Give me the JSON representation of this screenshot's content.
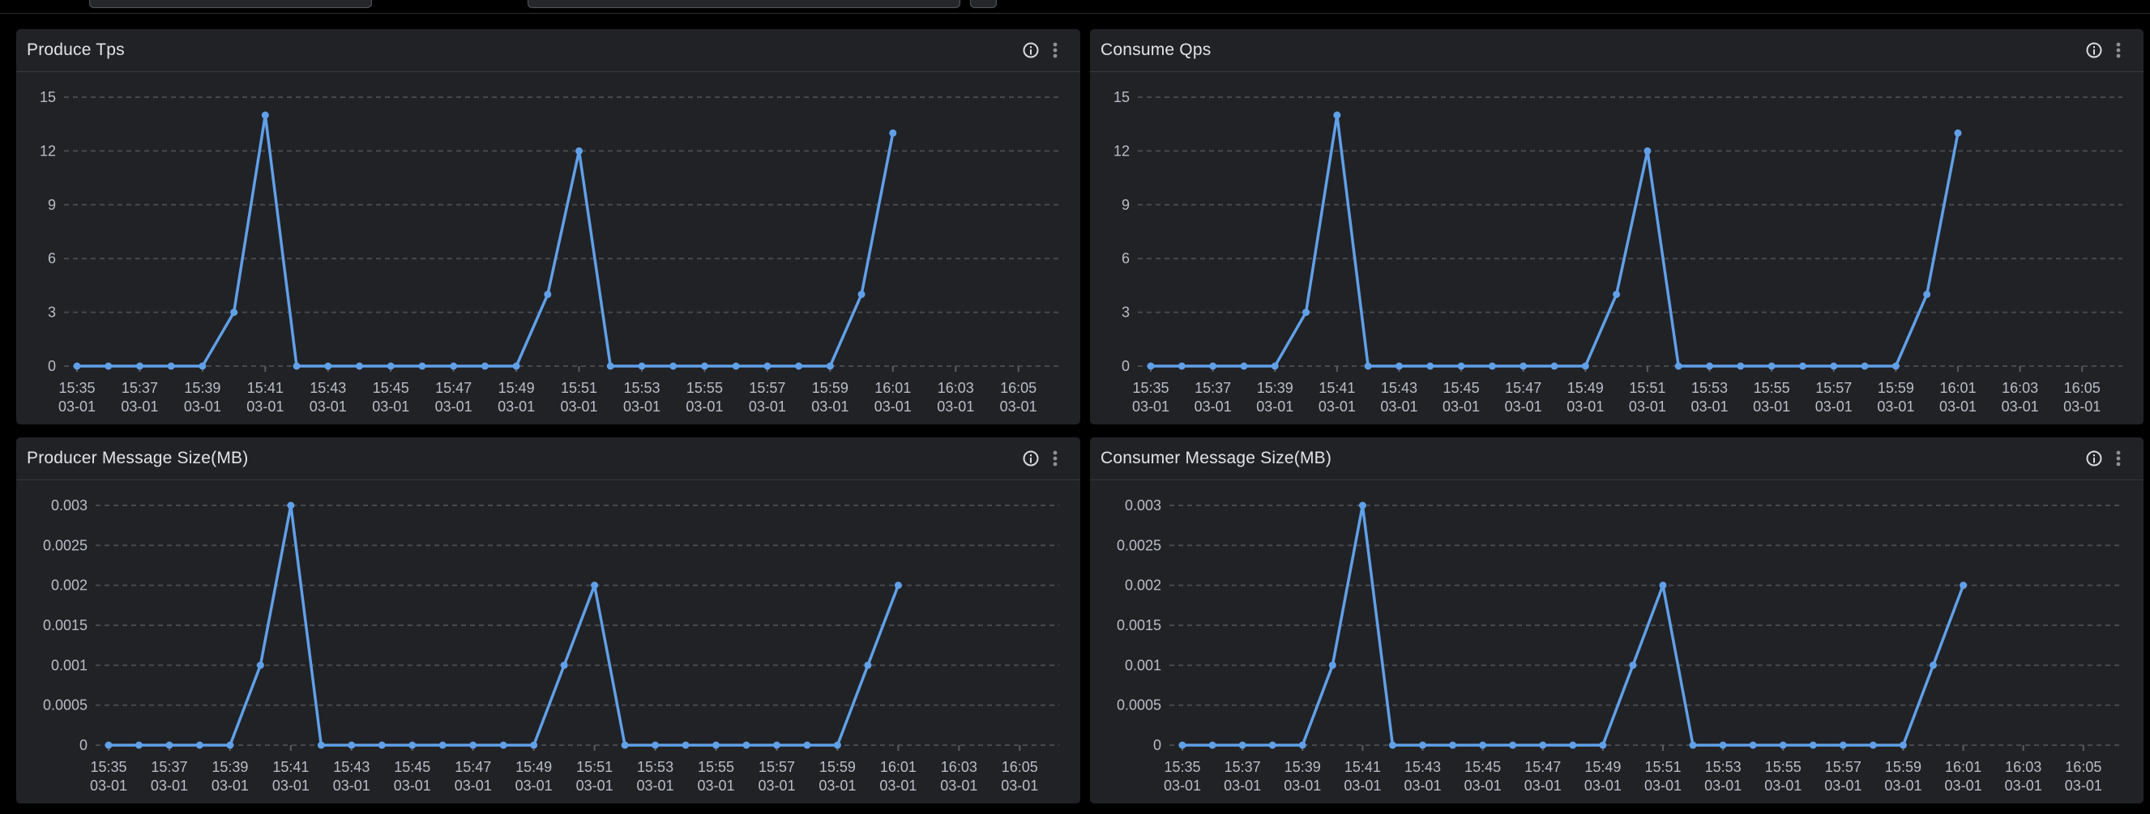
{
  "toolbar": {
    "input_1_value": "",
    "input_2_value": "",
    "button_stub_label": ""
  },
  "icons": {
    "panel_info": "info-icon",
    "panel_menu": "kebab-menu-icon"
  },
  "colors": {
    "page_background": "#000000",
    "panel_background": "#212226",
    "line": "#60A0E8",
    "grid": "#47494e",
    "axis_text": "#b9bdc6",
    "title_text": "#e2e3e6"
  },
  "chart_data": [
    {
      "type": "line",
      "title": "Produce Tps",
      "x": [
        "15:35",
        "15:36",
        "15:37",
        "15:38",
        "15:39",
        "15:40",
        "15:41",
        "15:42",
        "15:43",
        "15:44",
        "15:45",
        "15:46",
        "15:47",
        "15:48",
        "15:49",
        "15:50",
        "15:51",
        "15:52",
        "15:53",
        "15:54",
        "15:55",
        "15:56",
        "15:57",
        "15:58",
        "15:59",
        "16:00",
        "16:01"
      ],
      "values": [
        0,
        0,
        0,
        0,
        0,
        3,
        14,
        0,
        0,
        0,
        0,
        0,
        0,
        0,
        0,
        4,
        12,
        0,
        0,
        0,
        0,
        0,
        0,
        0,
        0,
        4,
        13
      ],
      "y_ticks": [
        0,
        3,
        6,
        9,
        12,
        15
      ],
      "ylim": [
        0,
        15
      ],
      "x_ticks": [
        "15:35",
        "15:37",
        "15:39",
        "15:41",
        "15:43",
        "15:45",
        "15:47",
        "15:49",
        "15:51",
        "15:53",
        "15:55",
        "15:57",
        "15:59",
        "16:01",
        "16:03",
        "16:05"
      ],
      "tick_date": "03-01",
      "xlabel": "",
      "ylabel": "",
      "legend": "none",
      "grid": "dashed horizontal",
      "line_color": "#60A0E8"
    },
    {
      "type": "line",
      "title": "Consume Qps",
      "x": [
        "15:35",
        "15:36",
        "15:37",
        "15:38",
        "15:39",
        "15:40",
        "15:41",
        "15:42",
        "15:43",
        "15:44",
        "15:45",
        "15:46",
        "15:47",
        "15:48",
        "15:49",
        "15:50",
        "15:51",
        "15:52",
        "15:53",
        "15:54",
        "15:55",
        "15:56",
        "15:57",
        "15:58",
        "15:59",
        "16:00",
        "16:01"
      ],
      "values": [
        0,
        0,
        0,
        0,
        0,
        3,
        14,
        0,
        0,
        0,
        0,
        0,
        0,
        0,
        0,
        4,
        12,
        0,
        0,
        0,
        0,
        0,
        0,
        0,
        0,
        4,
        13
      ],
      "y_ticks": [
        0,
        3,
        6,
        9,
        12,
        15
      ],
      "ylim": [
        0,
        15
      ],
      "x_ticks": [
        "15:35",
        "15:37",
        "15:39",
        "15:41",
        "15:43",
        "15:45",
        "15:47",
        "15:49",
        "15:51",
        "15:53",
        "15:55",
        "15:57",
        "15:59",
        "16:01",
        "16:03",
        "16:05"
      ],
      "tick_date": "03-01",
      "xlabel": "",
      "ylabel": "",
      "legend": "none",
      "grid": "dashed horizontal",
      "line_color": "#60A0E8"
    },
    {
      "type": "line",
      "title": "Producer Message Size(MB)",
      "x": [
        "15:35",
        "15:36",
        "15:37",
        "15:38",
        "15:39",
        "15:40",
        "15:41",
        "15:42",
        "15:43",
        "15:44",
        "15:45",
        "15:46",
        "15:47",
        "15:48",
        "15:49",
        "15:50",
        "15:51",
        "15:52",
        "15:53",
        "15:54",
        "15:55",
        "15:56",
        "15:57",
        "15:58",
        "15:59",
        "16:00",
        "16:01"
      ],
      "values": [
        0,
        0,
        0,
        0,
        0,
        0.001,
        0.003,
        0,
        0,
        0,
        0,
        0,
        0,
        0,
        0,
        0.001,
        0.002,
        0,
        0,
        0,
        0,
        0,
        0,
        0,
        0,
        0.001,
        0.002
      ],
      "y_ticks": [
        0,
        0.0005,
        0.001,
        0.0015,
        0.002,
        0.0025,
        0.003
      ],
      "ylim": [
        0,
        0.003
      ],
      "x_ticks": [
        "15:35",
        "15:37",
        "15:39",
        "15:41",
        "15:43",
        "15:45",
        "15:47",
        "15:49",
        "15:51",
        "15:53",
        "15:55",
        "15:57",
        "15:59",
        "16:01",
        "16:03",
        "16:05"
      ],
      "tick_date": "03-01",
      "xlabel": "",
      "ylabel": "",
      "legend": "none",
      "grid": "dashed horizontal",
      "line_color": "#60A0E8"
    },
    {
      "type": "line",
      "title": "Consumer Message Size(MB)",
      "x": [
        "15:35",
        "15:36",
        "15:37",
        "15:38",
        "15:39",
        "15:40",
        "15:41",
        "15:42",
        "15:43",
        "15:44",
        "15:45",
        "15:46",
        "15:47",
        "15:48",
        "15:49",
        "15:50",
        "15:51",
        "15:52",
        "15:53",
        "15:54",
        "15:55",
        "15:56",
        "15:57",
        "15:58",
        "15:59",
        "16:00",
        "16:01"
      ],
      "values": [
        0,
        0,
        0,
        0,
        0,
        0.001,
        0.003,
        0,
        0,
        0,
        0,
        0,
        0,
        0,
        0,
        0.001,
        0.002,
        0,
        0,
        0,
        0,
        0,
        0,
        0,
        0,
        0.001,
        0.002
      ],
      "y_ticks": [
        0,
        0.0005,
        0.001,
        0.0015,
        0.002,
        0.0025,
        0.003
      ],
      "ylim": [
        0,
        0.003
      ],
      "x_ticks": [
        "15:35",
        "15:37",
        "15:39",
        "15:41",
        "15:43",
        "15:45",
        "15:47",
        "15:49",
        "15:51",
        "15:53",
        "15:55",
        "15:57",
        "15:59",
        "16:01",
        "16:03",
        "16:05"
      ],
      "tick_date": "03-01",
      "xlabel": "",
      "ylabel": "",
      "legend": "none",
      "grid": "dashed horizontal",
      "line_color": "#60A0E8"
    }
  ]
}
